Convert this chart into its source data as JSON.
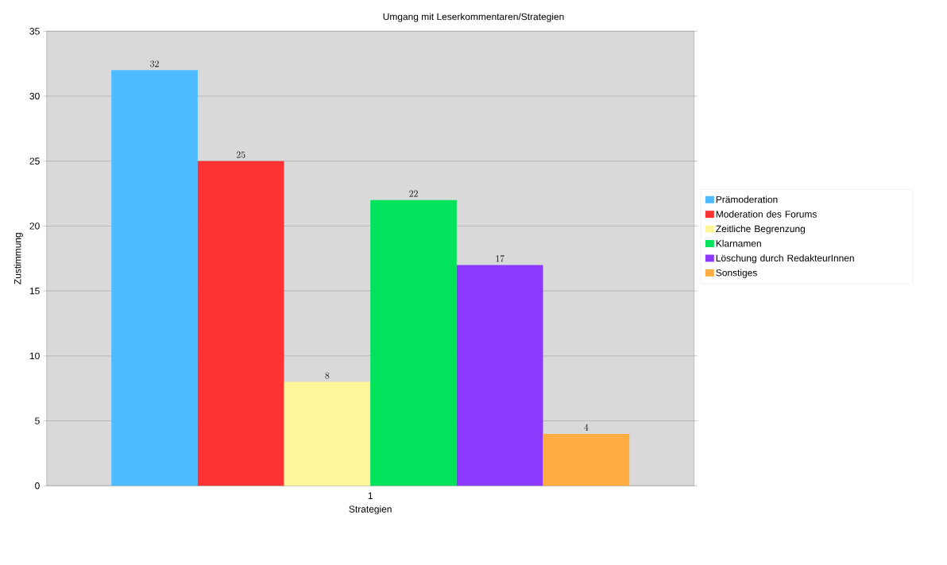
{
  "chart_data": {
    "type": "bar",
    "title": "Umgang mit Leserkommentaren/Strategien",
    "xlabel": "Strategien",
    "ylabel": "Zustimmung",
    "categories": [
      "1"
    ],
    "series": [
      {
        "name": "Prämoderation",
        "color": "#4dbbff",
        "values": [
          32
        ]
      },
      {
        "name": "Moderation des Forums",
        "color": "#ff3333",
        "values": [
          25
        ]
      },
      {
        "name": "Zeitliche Begrenzung",
        "color": "#fff599",
        "values": [
          8
        ]
      },
      {
        "name": "Klarnamen",
        "color": "#00e35a",
        "values": [
          22
        ]
      },
      {
        "name": "Löschung durch RedakteurInnen",
        "color": "#8c3aff",
        "values": [
          17
        ]
      },
      {
        "name": "Sonstiges",
        "color": "#ffad42",
        "values": [
          4
        ]
      }
    ],
    "ylim": [
      0,
      35
    ],
    "yticks": [
      0,
      5,
      10,
      15,
      20,
      25,
      30,
      35
    ],
    "grid": "y",
    "legend": "right",
    "data_labels": true
  }
}
